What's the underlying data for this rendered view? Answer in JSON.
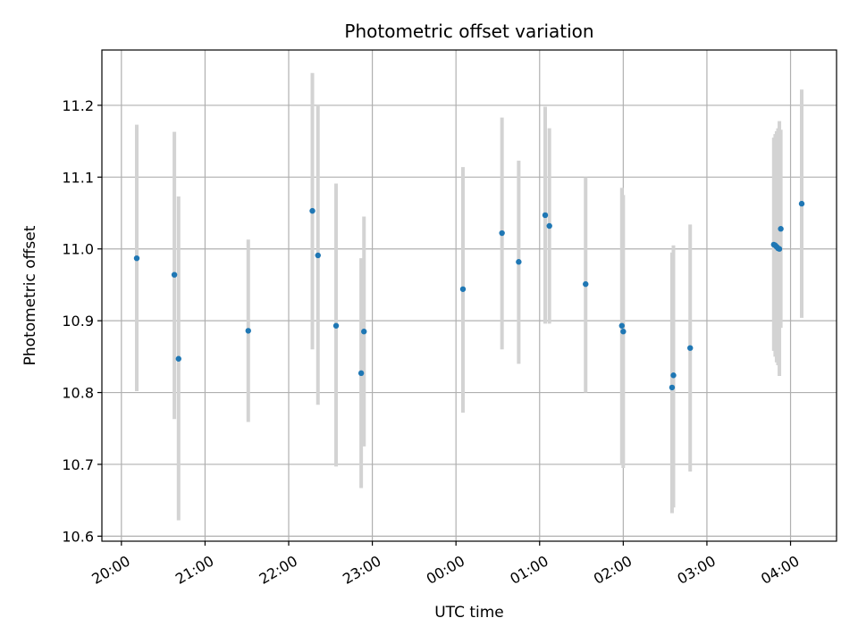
{
  "chart_data": {
    "type": "scatter",
    "title": "Photometric offset variation",
    "xlabel": "UTC time",
    "ylabel": "Photometric offset",
    "x_start": "2024-01-01 19:46",
    "x_end": "2024-01-02 04:33",
    "ylim": [
      10.593,
      11.277
    ],
    "grid": true,
    "x_ticks": [
      {
        "label": "20:00",
        "time": "2024-01-01 20:00"
      },
      {
        "label": "21:00",
        "time": "2024-01-01 21:00"
      },
      {
        "label": "22:00",
        "time": "2024-01-01 22:00"
      },
      {
        "label": "23:00",
        "time": "2024-01-01 23:00"
      },
      {
        "label": "00:00",
        "time": "2024-01-02 00:00"
      },
      {
        "label": "01:00",
        "time": "2024-01-02 01:00"
      },
      {
        "label": "02:00",
        "time": "2024-01-02 02:00"
      },
      {
        "label": "03:00",
        "time": "2024-01-02 03:00"
      },
      {
        "label": "04:00",
        "time": "2024-01-02 04:00"
      }
    ],
    "y_ticks": [
      10.6,
      10.7,
      10.8,
      10.9,
      11.0,
      11.1,
      11.2
    ],
    "y_tick_labels": [
      "10.6",
      "10.7",
      "10.8",
      "10.9",
      "11.0",
      "11.1",
      "11.2"
    ],
    "series": [
      {
        "point_color": "#1f77b4",
        "errorbar_color": "#d3d3d3",
        "points": [
          {
            "t": "2024-01-01 20:11",
            "y": 10.987,
            "lo": 10.802,
            "hi": 11.173
          },
          {
            "t": "2024-01-01 20:38",
            "y": 10.964,
            "lo": 10.763,
            "hi": 11.163
          },
          {
            "t": "2024-01-01 20:41",
            "y": 10.847,
            "lo": 10.622,
            "hi": 11.073
          },
          {
            "t": "2024-01-01 21:31",
            "y": 10.886,
            "lo": 10.759,
            "hi": 11.013
          },
          {
            "t": "2024-01-01 22:17",
            "y": 11.053,
            "lo": 10.86,
            "hi": 11.245
          },
          {
            "t": "2024-01-01 22:21",
            "y": 10.991,
            "lo": 10.783,
            "hi": 11.2
          },
          {
            "t": "2024-01-01 22:34",
            "y": 10.893,
            "lo": 10.697,
            "hi": 11.091
          },
          {
            "t": "2024-01-01 22:52",
            "y": 10.827,
            "lo": 10.667,
            "hi": 10.987
          },
          {
            "t": "2024-01-01 22:54",
            "y": 10.885,
            "lo": 10.725,
            "hi": 11.045
          },
          {
            "t": "2024-01-02 00:05",
            "y": 10.944,
            "lo": 10.772,
            "hi": 11.114
          },
          {
            "t": "2024-01-02 00:33",
            "y": 11.022,
            "lo": 10.86,
            "hi": 11.183
          },
          {
            "t": "2024-01-02 00:45",
            "y": 10.982,
            "lo": 10.84,
            "hi": 11.123
          },
          {
            "t": "2024-01-02 01:04",
            "y": 11.047,
            "lo": 10.896,
            "hi": 11.198
          },
          {
            "t": "2024-01-02 01:07",
            "y": 11.032,
            "lo": 10.896,
            "hi": 11.168
          },
          {
            "t": "2024-01-02 01:33",
            "y": 10.951,
            "lo": 10.8,
            "hi": 11.1
          },
          {
            "t": "2024-01-02 01:59",
            "y": 10.893,
            "lo": 10.7,
            "hi": 11.085
          },
          {
            "t": "2024-01-02 02:00",
            "y": 10.885,
            "lo": 10.695,
            "hi": 11.075
          },
          {
            "t": "2024-01-02 02:35",
            "y": 10.807,
            "lo": 10.632,
            "hi": 10.995
          },
          {
            "t": "2024-01-02 02:36",
            "y": 10.824,
            "lo": 10.64,
            "hi": 11.005
          },
          {
            "t": "2024-01-02 02:48",
            "y": 10.862,
            "lo": 10.69,
            "hi": 11.034
          },
          {
            "t": "2024-01-02 03:48",
            "y": 11.006,
            "lo": 10.858,
            "hi": 11.155
          },
          {
            "t": "2024-01-02 03:49",
            "y": 11.005,
            "lo": 10.85,
            "hi": 11.16
          },
          {
            "t": "2024-01-02 03:50",
            "y": 11.003,
            "lo": 10.842,
            "hi": 11.164
          },
          {
            "t": "2024-01-02 03:51",
            "y": 11.001,
            "lo": 10.838,
            "hi": 11.168
          },
          {
            "t": "2024-01-02 03:52",
            "y": 11.0,
            "lo": 10.823,
            "hi": 11.178
          },
          {
            "t": "2024-01-02 03:53",
            "y": 11.028,
            "lo": 10.89,
            "hi": 11.166
          },
          {
            "t": "2024-01-02 04:08",
            "y": 11.063,
            "lo": 10.904,
            "hi": 11.222
          }
        ]
      }
    ]
  }
}
